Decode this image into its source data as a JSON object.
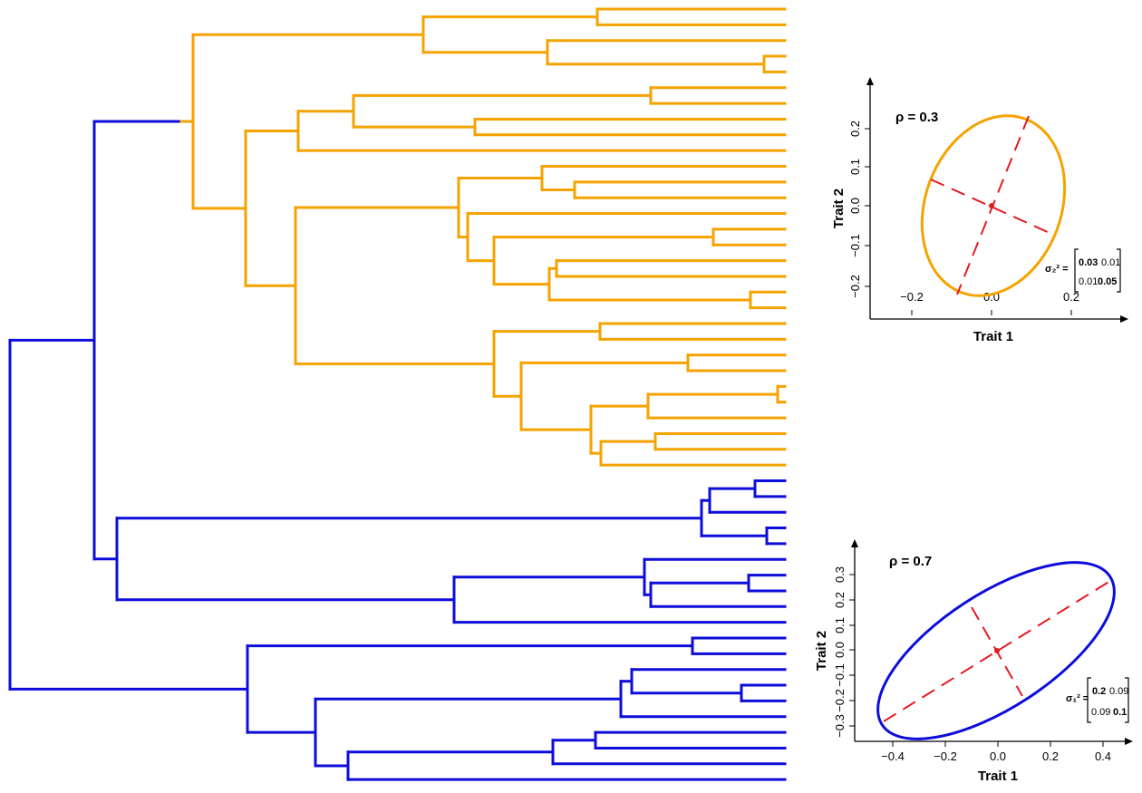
{
  "colors": {
    "clade_orange": "#F5A300",
    "clade_blue": "#0D0DDB",
    "axis_line": "#E31B23"
  },
  "tree": {
    "orange_leaf_count": 30,
    "blue_leaf_count": 20
  },
  "plots": [
    {
      "id": "top",
      "rho_label": "ρ = 0.3",
      "xlabel": "Trait 1",
      "ylabel": "Trait 2",
      "xticks": [
        "−0.2",
        "0.0",
        "0.2"
      ],
      "yticks": [
        "−0.2",
        "−0.1",
        "0.0",
        "0.1",
        "0.2"
      ],
      "matrix_label": "σ₂² =",
      "matrix": [
        [
          "0.03",
          "0.01"
        ],
        [
          "0.01",
          "0.05"
        ]
      ],
      "ellipse_color": "#F5A300"
    },
    {
      "id": "bottom",
      "rho_label": "ρ = 0.7",
      "xlabel": "Trait 1",
      "ylabel": "Trait 2",
      "xticks": [
        "−0.4",
        "−0.2",
        "0.0",
        "0.2",
        "0.4"
      ],
      "yticks": [
        "−0.3",
        "−0.2",
        "−0.1",
        "0.0",
        "0.1",
        "0.2",
        "0.3"
      ],
      "matrix_label": "σ₁² =",
      "matrix": [
        [
          "0.2",
          "0.09"
        ],
        [
          "0.09",
          "0.1"
        ]
      ],
      "ellipse_color": "#0D0DDB"
    }
  ]
}
